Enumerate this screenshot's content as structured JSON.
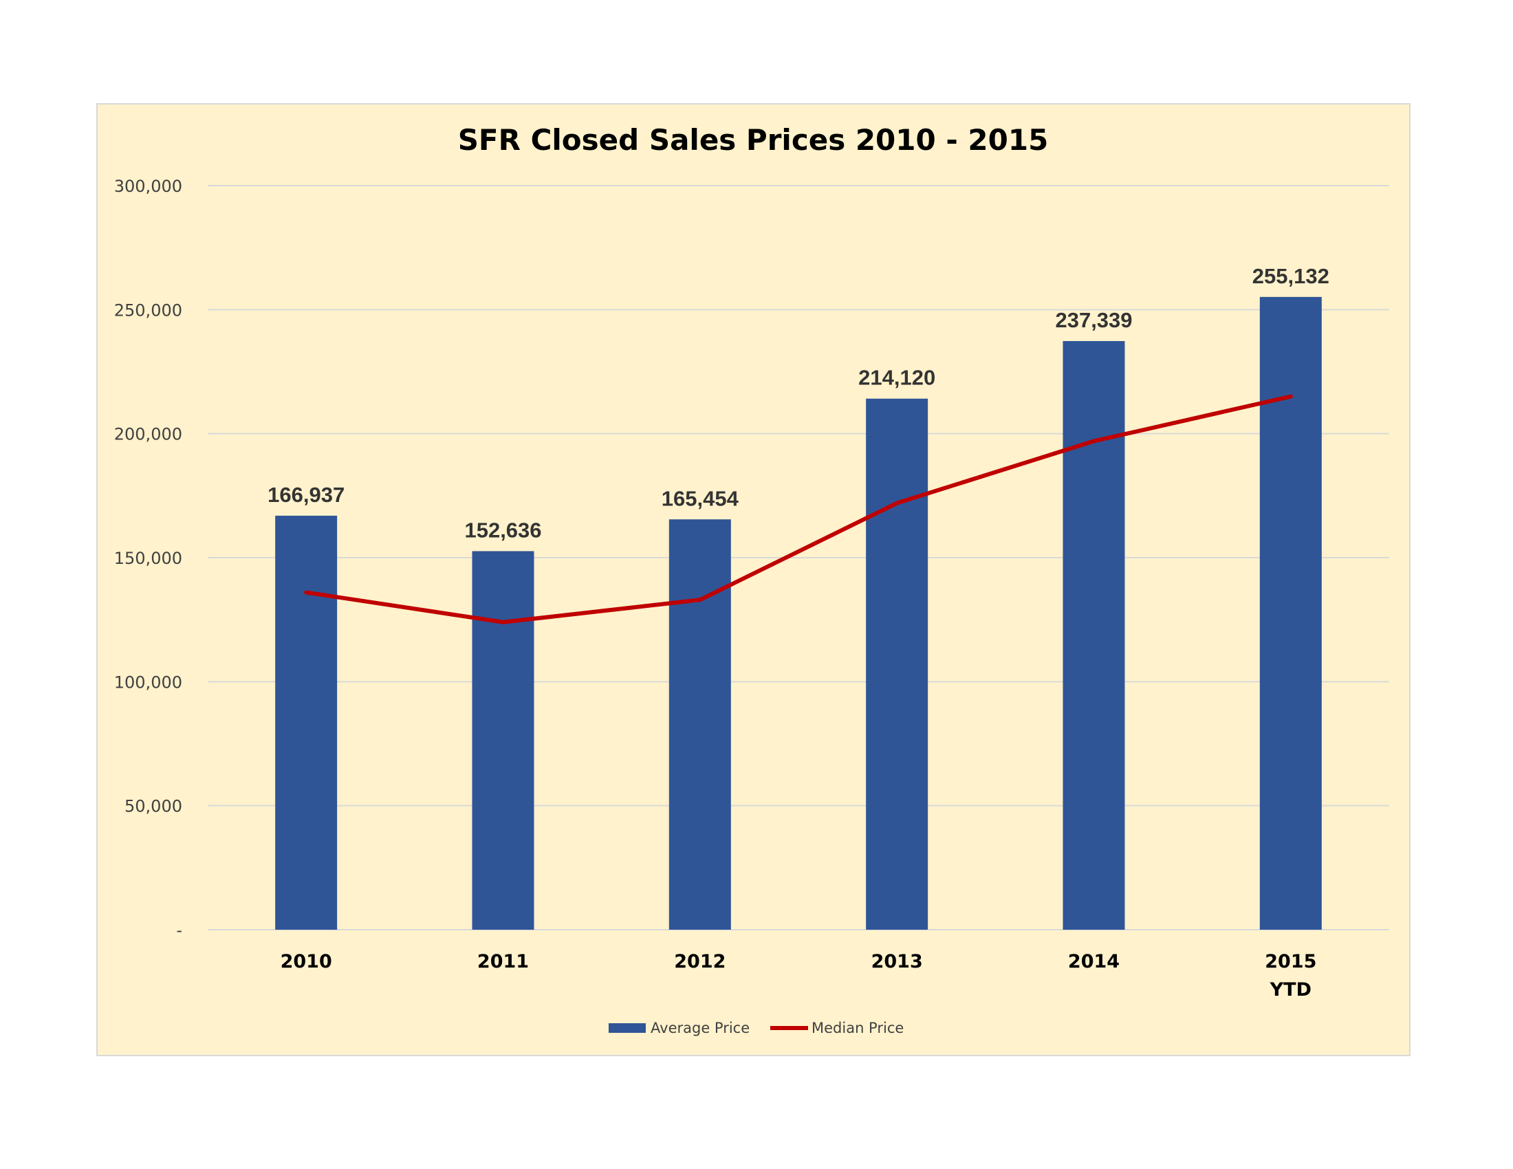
{
  "chart_data": {
    "type": "bar",
    "title": "SFR Closed Sales Prices 2010 - 2015",
    "categories": [
      [
        "2010"
      ],
      [
        "2011"
      ],
      [
        "2012"
      ],
      [
        "2013"
      ],
      [
        "2014"
      ],
      [
        "2015",
        "YTD"
      ]
    ],
    "series": [
      {
        "name": "Average Price",
        "type": "bar",
        "values": [
          166937,
          152636,
          165454,
          214120,
          237339,
          255132
        ],
        "data_labels": [
          "166,937",
          "152,636",
          "165,454",
          "214,120",
          "237,339",
          "255,132"
        ],
        "color": "#2F5597"
      },
      {
        "name": "Median Price",
        "type": "line",
        "values": [
          136000,
          124000,
          133000,
          172000,
          197000,
          215000
        ],
        "color": "#C00000"
      }
    ],
    "ylim": [
      0,
      300000
    ],
    "yticks": [
      0,
      50000,
      100000,
      150000,
      200000,
      250000,
      300000
    ],
    "ytick_labels": [
      "-",
      "50,000",
      "100,000",
      "150,000",
      "200,000",
      "250,000",
      "300,000"
    ],
    "xlabel": "",
    "ylabel": "",
    "grid": true,
    "legend_position": "bottom",
    "background_color": "#FFF2CC",
    "gridline_color": "#D9D9D9"
  }
}
